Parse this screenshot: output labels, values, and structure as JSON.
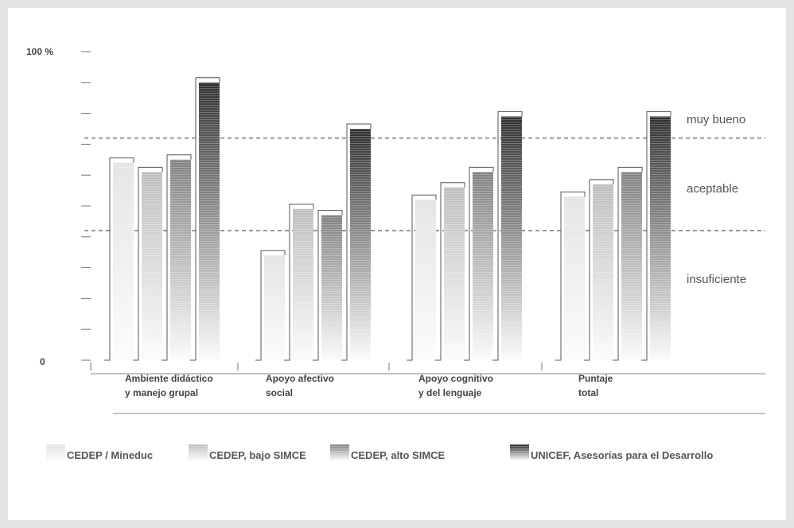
{
  "chart_data": {
    "type": "bar",
    "y_axis": {
      "top_label": "100 %",
      "bottom_label": "0"
    },
    "ylim": [
      0,
      100
    ],
    "categories": [
      [
        "Ambiente didáctico",
        "y manejo grupal"
      ],
      [
        "Apoyo afectivo",
        "social"
      ],
      [
        "Apoyo cognitivo",
        "y del lenguaje"
      ],
      [
        "Puntaje",
        "total"
      ]
    ],
    "series": [
      {
        "name": "CEDEP / Mineduc",
        "values": [
          64,
          34,
          52,
          53
        ],
        "shade": "#e3e3e3"
      },
      {
        "name": "CEDEP, bajo SIMCE",
        "values": [
          61,
          49,
          56,
          57
        ],
        "shade": "#bdbdbd"
      },
      {
        "name": "CEDEP, alto SIMCE",
        "values": [
          65,
          47,
          61,
          61
        ],
        "shade": "#808080"
      },
      {
        "name": "UNICEF, Asesorías para el Desarrollo",
        "values": [
          90,
          75,
          79,
          79
        ],
        "shade": "#2e2e2e"
      }
    ],
    "reference_lines": [
      {
        "value": 72,
        "label": ""
      },
      {
        "value": 42,
        "label": ""
      }
    ],
    "zones": [
      "muy bueno",
      "aceptable",
      "insuficiente"
    ],
    "grid": false,
    "legend_position": "bottom"
  }
}
